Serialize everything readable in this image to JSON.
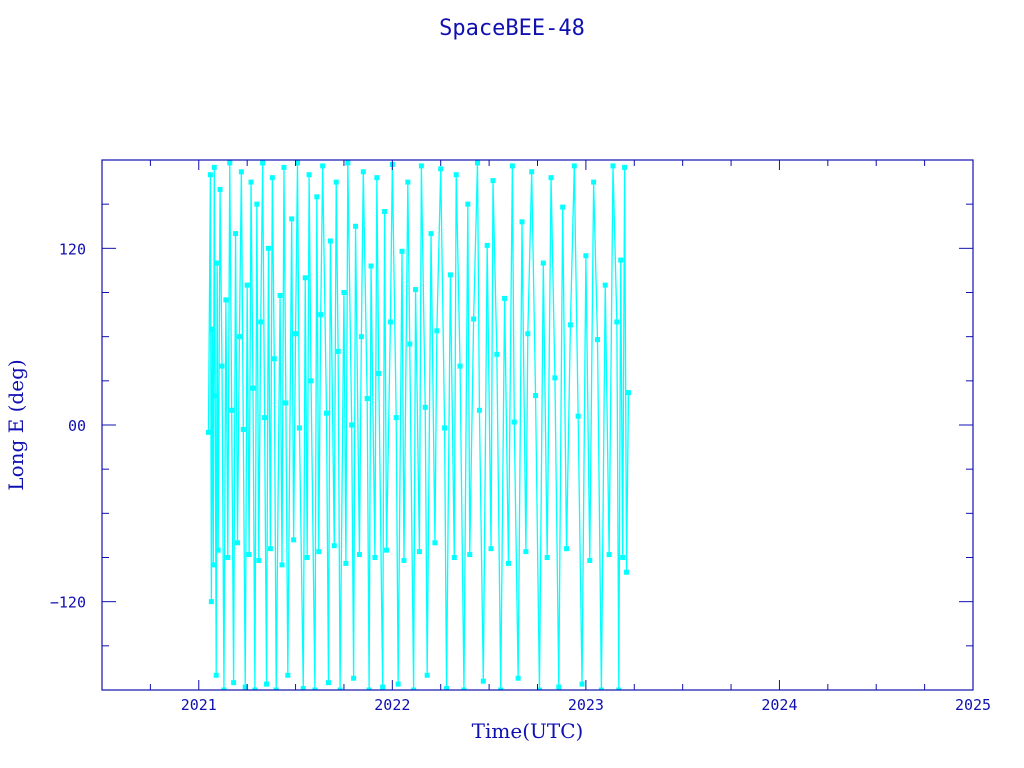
{
  "chart_data": {
    "type": "line",
    "title": "SpaceBEE-48",
    "xlabel": "Time(UTC)",
    "ylabel": "Long E (deg)",
    "xlim": [
      2020.5,
      2025.0
    ],
    "ylim": [
      -180,
      180
    ],
    "x_ticks": [
      2021,
      2022,
      2023,
      2024,
      2025
    ],
    "x_tick_labels": [
      "2021",
      "2022",
      "2023",
      "2024",
      "2025"
    ],
    "y_ticks": [
      120,
      0,
      -120
    ],
    "y_tick_labels": [
      "120",
      "00",
      "−120"
    ],
    "grid": false,
    "markers": "square",
    "colors": {
      "series": "#00ffff",
      "axes": "#1010b0"
    },
    "series": [
      {
        "points": [
          [
            2021.05,
            -5
          ],
          [
            2021.06,
            170
          ],
          [
            2021.065,
            -120
          ],
          [
            2021.07,
            65
          ],
          [
            2021.075,
            -95
          ],
          [
            2021.08,
            175
          ],
          [
            2021.085,
            20
          ],
          [
            2021.09,
            -170
          ],
          [
            2021.095,
            110
          ],
          [
            2021.1,
            -85
          ],
          [
            2021.11,
            160
          ],
          [
            2021.12,
            40
          ],
          [
            2021.13,
            -180
          ],
          [
            2021.14,
            85
          ],
          [
            2021.15,
            -90
          ],
          [
            2021.16,
            178
          ],
          [
            2021.17,
            10
          ],
          [
            2021.18,
            -175
          ],
          [
            2021.19,
            130
          ],
          [
            2021.2,
            -80
          ],
          [
            2021.21,
            60
          ],
          [
            2021.22,
            172
          ],
          [
            2021.23,
            -3
          ],
          [
            2021.24,
            -178
          ],
          [
            2021.25,
            95
          ],
          [
            2021.26,
            -88
          ],
          [
            2021.27,
            165
          ],
          [
            2021.28,
            25
          ],
          [
            2021.29,
            -180
          ],
          [
            2021.3,
            150
          ],
          [
            2021.31,
            -92
          ],
          [
            2021.32,
            70
          ],
          [
            2021.33,
            178
          ],
          [
            2021.34,
            5
          ],
          [
            2021.35,
            -176
          ],
          [
            2021.36,
            120
          ],
          [
            2021.37,
            -84
          ],
          [
            2021.38,
            168
          ],
          [
            2021.39,
            45
          ],
          [
            2021.4,
            -180
          ],
          [
            2021.42,
            88
          ],
          [
            2021.43,
            -95
          ],
          [
            2021.44,
            175
          ],
          [
            2021.45,
            15
          ],
          [
            2021.46,
            -170
          ],
          [
            2021.48,
            140
          ],
          [
            2021.49,
            -78
          ],
          [
            2021.5,
            62
          ],
          [
            2021.51,
            178
          ],
          [
            2021.52,
            -2
          ],
          [
            2021.54,
            -179
          ],
          [
            2021.55,
            100
          ],
          [
            2021.56,
            -90
          ],
          [
            2021.57,
            170
          ],
          [
            2021.58,
            30
          ],
          [
            2021.6,
            -180
          ],
          [
            2021.61,
            155
          ],
          [
            2021.62,
            -86
          ],
          [
            2021.63,
            75
          ],
          [
            2021.64,
            176
          ],
          [
            2021.66,
            8
          ],
          [
            2021.67,
            -175
          ],
          [
            2021.68,
            125
          ],
          [
            2021.7,
            -82
          ],
          [
            2021.71,
            165
          ],
          [
            2021.72,
            50
          ],
          [
            2021.73,
            -180
          ],
          [
            2021.75,
            90
          ],
          [
            2021.76,
            -94
          ],
          [
            2021.77,
            178
          ],
          [
            2021.79,
            0
          ],
          [
            2021.8,
            -172
          ],
          [
            2021.81,
            135
          ],
          [
            2021.83,
            -88
          ],
          [
            2021.84,
            60
          ],
          [
            2021.85,
            172
          ],
          [
            2021.87,
            18
          ],
          [
            2021.88,
            -180
          ],
          [
            2021.89,
            108
          ],
          [
            2021.91,
            -90
          ],
          [
            2021.92,
            168
          ],
          [
            2021.93,
            35
          ],
          [
            2021.95,
            -178
          ],
          [
            2021.96,
            145
          ],
          [
            2021.97,
            -85
          ],
          [
            2021.99,
            70
          ],
          [
            2022.0,
            177
          ],
          [
            2022.02,
            5
          ],
          [
            2022.03,
            -176
          ],
          [
            2022.05,
            118
          ],
          [
            2022.06,
            -92
          ],
          [
            2022.08,
            165
          ],
          [
            2022.09,
            55
          ],
          [
            2022.11,
            -180
          ],
          [
            2022.12,
            92
          ],
          [
            2022.14,
            -86
          ],
          [
            2022.15,
            176
          ],
          [
            2022.17,
            12
          ],
          [
            2022.18,
            -170
          ],
          [
            2022.2,
            130
          ],
          [
            2022.22,
            -80
          ],
          [
            2022.23,
            64
          ],
          [
            2022.25,
            174
          ],
          [
            2022.27,
            -2
          ],
          [
            2022.28,
            -179
          ],
          [
            2022.3,
            102
          ],
          [
            2022.32,
            -90
          ],
          [
            2022.33,
            170
          ],
          [
            2022.35,
            40
          ],
          [
            2022.37,
            -180
          ],
          [
            2022.39,
            150
          ],
          [
            2022.4,
            -88
          ],
          [
            2022.42,
            72
          ],
          [
            2022.44,
            178
          ],
          [
            2022.45,
            10
          ],
          [
            2022.47,
            -174
          ],
          [
            2022.49,
            122
          ],
          [
            2022.51,
            -84
          ],
          [
            2022.52,
            166
          ],
          [
            2022.54,
            48
          ],
          [
            2022.56,
            -180
          ],
          [
            2022.58,
            86
          ],
          [
            2022.6,
            -94
          ],
          [
            2022.62,
            176
          ],
          [
            2022.63,
            2
          ],
          [
            2022.65,
            -172
          ],
          [
            2022.67,
            138
          ],
          [
            2022.69,
            -86
          ],
          [
            2022.7,
            62
          ],
          [
            2022.72,
            172
          ],
          [
            2022.74,
            20
          ],
          [
            2022.76,
            -180
          ],
          [
            2022.78,
            110
          ],
          [
            2022.8,
            -90
          ],
          [
            2022.82,
            168
          ],
          [
            2022.84,
            32
          ],
          [
            2022.86,
            -178
          ],
          [
            2022.88,
            148
          ],
          [
            2022.9,
            -84
          ],
          [
            2022.92,
            68
          ],
          [
            2022.94,
            176
          ],
          [
            2022.96,
            6
          ],
          [
            2022.98,
            -176
          ],
          [
            2023.0,
            115
          ],
          [
            2023.02,
            -92
          ],
          [
            2023.04,
            165
          ],
          [
            2023.06,
            58
          ],
          [
            2023.08,
            -180
          ],
          [
            2023.1,
            95
          ],
          [
            2023.12,
            -88
          ],
          [
            2023.14,
            176
          ],
          [
            2023.16,
            70
          ],
          [
            2023.17,
            -180
          ],
          [
            2023.18,
            112
          ],
          [
            2023.19,
            -90
          ],
          [
            2023.2,
            175
          ],
          [
            2023.21,
            -100
          ],
          [
            2023.22,
            22
          ]
        ]
      }
    ]
  }
}
